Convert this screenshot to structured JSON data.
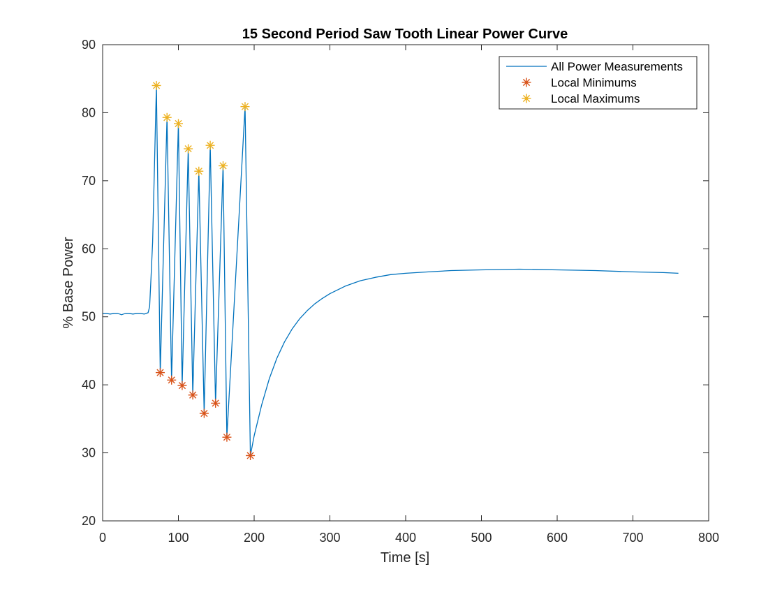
{
  "chart_data": {
    "type": "line",
    "title": "15 Second Period Saw Tooth Linear Power Curve",
    "xlabel": "Time [s]",
    "ylabel": "% Base Power",
    "xlim": [
      0,
      800
    ],
    "ylim": [
      20,
      90
    ],
    "xticks": [
      0,
      100,
      200,
      300,
      400,
      500,
      600,
      700,
      800
    ],
    "yticks": [
      20,
      30,
      40,
      50,
      60,
      70,
      80,
      90
    ],
    "grid": false,
    "legend_position": "top-right",
    "colors": {
      "line": "#0072BD",
      "minimums": "#D95319",
      "maximums": "#EDB120",
      "axes": "#262626"
    },
    "series": [
      {
        "name": "All Power Measurements",
        "style": "line",
        "x": [
          0,
          5,
          10,
          15,
          20,
          25,
          30,
          35,
          40,
          45,
          50,
          55,
          60,
          62,
          64,
          66,
          71,
          76,
          85,
          91,
          100,
          105,
          113,
          119,
          127,
          134,
          142,
          149,
          159,
          164,
          188,
          195,
          200,
          210,
          220,
          230,
          240,
          250,
          260,
          270,
          280,
          290,
          300,
          320,
          340,
          360,
          380,
          400,
          430,
          460,
          500,
          550,
          600,
          650,
          700,
          740,
          760
        ],
        "y": [
          50.5,
          50.5,
          50.4,
          50.5,
          50.5,
          50.3,
          50.5,
          50.5,
          50.4,
          50.5,
          50.5,
          50.4,
          50.6,
          51.5,
          56,
          61,
          84,
          41.8,
          79.3,
          40.7,
          78.4,
          39.9,
          74.7,
          38.5,
          71.4,
          35.8,
          75.2,
          37.3,
          72.2,
          32.3,
          80.9,
          29.6,
          32.5,
          37.1,
          40.9,
          43.9,
          46.3,
          48.2,
          49.7,
          50.9,
          51.9,
          52.7,
          53.4,
          54.5,
          55.3,
          55.8,
          56.2,
          56.4,
          56.6,
          56.8,
          56.9,
          57,
          56.9,
          56.8,
          56.6,
          56.5,
          56.4
        ]
      },
      {
        "name": "Local Minimums",
        "style": "markers",
        "x": [
          76,
          91,
          105,
          119,
          134,
          149,
          164,
          195
        ],
        "y": [
          41.8,
          40.7,
          39.9,
          38.5,
          35.8,
          37.3,
          32.3,
          29.6
        ]
      },
      {
        "name": "Local Maximums",
        "style": "markers",
        "x": [
          71,
          85,
          100,
          113,
          127,
          142,
          159,
          188
        ],
        "y": [
          84,
          79.3,
          78.4,
          74.7,
          71.4,
          75.2,
          72.2,
          80.9
        ]
      }
    ]
  }
}
